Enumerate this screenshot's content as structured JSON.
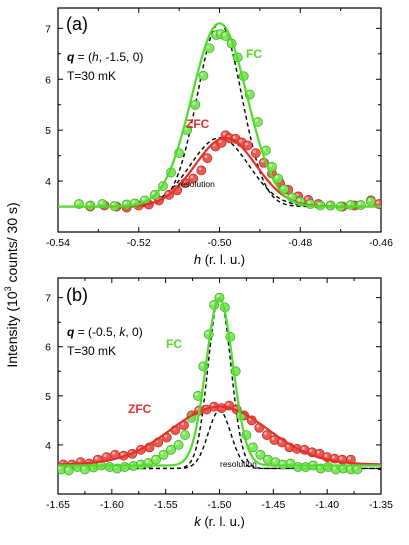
{
  "figure": {
    "ylabel_prefix": "Intensity (10",
    "ylabel_exp": "3",
    "ylabel_suffix": " counts/ 30 s)"
  },
  "colors": {
    "fc": "#4fdc2a",
    "zfc": "#e3312a",
    "zfc_marker": "#ee4a42",
    "fc_marker": "#73e64e",
    "resolution": "#000000"
  },
  "chart_data": [
    {
      "panel_label": "(a)",
      "type": "scatter",
      "q_bold": "q",
      "q_rest": " = (",
      "q_var": "h",
      "q_tail": ", -1.5, 0)",
      "temperature": "T=30 mK",
      "xlabel_var": "h",
      "xlabel_rest": " (r. l. u.)",
      "xlim": [
        -0.54,
        -0.46
      ],
      "ylim": [
        3.0,
        7.4
      ],
      "xticks": [
        -0.54,
        -0.52,
        -0.5,
        -0.48,
        -0.46
      ],
      "xtick_labels": [
        "-0.54",
        "-0.52",
        "-0.50",
        "-0.48",
        "-0.46"
      ],
      "yticks": [
        4,
        5,
        6,
        7
      ],
      "ytick_labels": [
        "4",
        "5",
        "6",
        "7"
      ],
      "labels": {
        "fc": "FC",
        "zfc": "ZFC",
        "resolution": "resolution"
      },
      "fits": {
        "fc": {
          "center": -0.5,
          "amplitude": 3.6,
          "sigma": 0.0068,
          "background": 3.5
        },
        "zfc": {
          "center": -0.4985,
          "amplitude": 1.35,
          "sigma": 0.0075,
          "background": 3.5
        },
        "resolution_fc": {
          "center": -0.5,
          "amplitude": 3.6,
          "sigma": 0.0055,
          "background": 3.5
        },
        "resolution_zfc": {
          "center": -0.5,
          "amplitude": 1.35,
          "sigma": 0.0072,
          "background": 3.5
        }
      },
      "series": [
        {
          "name": "FC",
          "points": [
            [
              -0.5348,
              3.55
            ],
            [
              -0.532,
              3.52
            ],
            [
              -0.529,
              3.55
            ],
            [
              -0.526,
              3.51
            ],
            [
              -0.523,
              3.54
            ],
            [
              -0.521,
              3.56
            ],
            [
              -0.5185,
              3.62
            ],
            [
              -0.516,
              3.73
            ],
            [
              -0.514,
              3.9
            ],
            [
              -0.512,
              4.17
            ],
            [
              -0.51,
              4.55
            ],
            [
              -0.508,
              5.0
            ],
            [
              -0.506,
              5.5
            ],
            [
              -0.504,
              6.07
            ],
            [
              -0.5025,
              6.61
            ],
            [
              -0.5008,
              6.87
            ],
            [
              -0.4997,
              6.89
            ],
            [
              -0.4985,
              6.85
            ],
            [
              -0.497,
              6.7
            ],
            [
              -0.4955,
              6.43
            ],
            [
              -0.494,
              6.06
            ],
            [
              -0.4925,
              5.7
            ],
            [
              -0.4905,
              5.16
            ],
            [
              -0.4885,
              4.6
            ],
            [
              -0.487,
              4.28
            ],
            [
              -0.4855,
              4.05
            ],
            [
              -0.484,
              3.84
            ],
            [
              -0.482,
              3.68
            ],
            [
              -0.48,
              3.6
            ],
            [
              -0.4775,
              3.55
            ],
            [
              -0.475,
              3.52
            ],
            [
              -0.4725,
              3.52
            ],
            [
              -0.47,
              3.5
            ],
            [
              -0.4675,
              3.53
            ],
            [
              -0.465,
              3.53
            ],
            [
              -0.4625,
              3.6
            ]
          ]
        },
        {
          "name": "ZFC",
          "points": [
            [
              -0.532,
              3.5
            ],
            [
              -0.5285,
              3.52
            ],
            [
              -0.5255,
              3.5
            ],
            [
              -0.523,
              3.48
            ],
            [
              -0.52,
              3.52
            ],
            [
              -0.5175,
              3.54
            ],
            [
              -0.515,
              3.62
            ],
            [
              -0.5125,
              3.73
            ],
            [
              -0.5105,
              3.82
            ],
            [
              -0.5085,
              3.96
            ],
            [
              -0.5065,
              4.05
            ],
            [
              -0.5045,
              4.21
            ],
            [
              -0.503,
              4.45
            ],
            [
              -0.501,
              4.68
            ],
            [
              -0.4995,
              4.75
            ],
            [
              -0.4985,
              4.9
            ],
            [
              -0.4975,
              4.84
            ],
            [
              -0.496,
              4.83
            ],
            [
              -0.4945,
              4.76
            ],
            [
              -0.493,
              4.7
            ],
            [
              -0.491,
              4.55
            ],
            [
              -0.489,
              4.36
            ],
            [
              -0.487,
              4.15
            ],
            [
              -0.485,
              3.96
            ],
            [
              -0.483,
              3.83
            ],
            [
              -0.4805,
              3.7
            ],
            [
              -0.478,
              3.63
            ],
            [
              -0.4755,
              3.55
            ],
            [
              -0.4725,
              3.52
            ],
            [
              -0.4695,
              3.5
            ],
            [
              -0.4665,
              3.52
            ],
            [
              -0.4625,
              3.62
            ],
            [
              -0.4605,
              3.55
            ]
          ]
        }
      ]
    },
    {
      "panel_label": "(b)",
      "type": "scatter",
      "q_bold": "q",
      "q_rest": " = (-0.5, ",
      "q_var": "k",
      "q_tail": ", 0)",
      "temperature": "T=30 mK",
      "xlabel_var": "k",
      "xlabel_rest": " (r. l. u.)",
      "xlim": [
        -1.65,
        -1.35
      ],
      "ylim": [
        3.0,
        7.4
      ],
      "xticks": [
        -1.65,
        -1.6,
        -1.55,
        -1.5,
        -1.45,
        -1.4,
        -1.35
      ],
      "xtick_labels": [
        "-1.65",
        "-1.60",
        "-1.55",
        "-1.50",
        "-1.45",
        "-1.40",
        "-1.35"
      ],
      "yticks": [
        4,
        5,
        6,
        7
      ],
      "ytick_labels": [
        "4",
        "5",
        "6",
        "7"
      ],
      "labels": {
        "fc": "FC",
        "zfc": "ZFC",
        "resolution": "resolution"
      },
      "fits": {
        "fc": {
          "center": -1.5,
          "amplitude": 3.4,
          "sigma": 0.0125,
          "background": 3.58
        },
        "zfc": {
          "center": -1.5,
          "amplitude": 1.18,
          "sigma": 0.045,
          "background": 3.6
        },
        "resolution_fc": {
          "center": -1.5,
          "amplitude": 3.5,
          "sigma": 0.0105,
          "background": 3.52
        },
        "resolution_zfc": {
          "center": -1.5,
          "amplitude": 1.18,
          "sigma": 0.0105,
          "background": 3.52
        }
      },
      "series": [
        {
          "name": "FC",
          "points": [
            [
              -1.647,
              3.5
            ],
            [
              -1.64,
              3.48
            ],
            [
              -1.632,
              3.55
            ],
            [
              -1.625,
              3.5
            ],
            [
              -1.617,
              3.54
            ],
            [
              -1.61,
              3.58
            ],
            [
              -1.602,
              3.55
            ],
            [
              -1.595,
              3.52
            ],
            [
              -1.588,
              3.55
            ],
            [
              -1.58,
              3.57
            ],
            [
              -1.573,
              3.6
            ],
            [
              -1.566,
              3.63
            ],
            [
              -1.559,
              3.7
            ],
            [
              -1.552,
              3.8
            ],
            [
              -1.545,
              3.9
            ],
            [
              -1.538,
              4.0
            ],
            [
              -1.532,
              4.2
            ],
            [
              -1.526,
              4.55
            ],
            [
              -1.52,
              5.0
            ],
            [
              -1.515,
              5.6
            ],
            [
              -1.51,
              6.25
            ],
            [
              -1.505,
              6.85
            ],
            [
              -1.5,
              7.0
            ],
            [
              -1.495,
              6.8
            ],
            [
              -1.49,
              6.2
            ],
            [
              -1.485,
              5.5
            ],
            [
              -1.48,
              4.6
            ],
            [
              -1.475,
              4.2
            ],
            [
              -1.469,
              3.95
            ],
            [
              -1.462,
              3.8
            ],
            [
              -1.455,
              3.7
            ],
            [
              -1.448,
              3.65
            ],
            [
              -1.441,
              3.6
            ],
            [
              -1.434,
              3.62
            ],
            [
              -1.427,
              3.55
            ],
            [
              -1.42,
              3.55
            ],
            [
              -1.413,
              3.58
            ],
            [
              -1.406,
              3.52
            ],
            [
              -1.399,
              3.55
            ],
            [
              -1.392,
              3.5
            ],
            [
              -1.385,
              3.52
            ],
            [
              -1.378,
              3.5
            ],
            [
              -1.372,
              3.5
            ]
          ]
        },
        {
          "name": "ZFC",
          "points": [
            [
              -1.645,
              3.6
            ],
            [
              -1.637,
              3.6
            ],
            [
              -1.629,
              3.65
            ],
            [
              -1.621,
              3.62
            ],
            [
              -1.613,
              3.7
            ],
            [
              -1.605,
              3.75
            ],
            [
              -1.597,
              3.8
            ],
            [
              -1.589,
              3.78
            ],
            [
              -1.581,
              3.82
            ],
            [
              -1.573,
              3.9
            ],
            [
              -1.565,
              3.95
            ],
            [
              -1.557,
              4.05
            ],
            [
              -1.549,
              4.15
            ],
            [
              -1.541,
              4.3
            ],
            [
              -1.533,
              4.4
            ],
            [
              -1.526,
              4.6
            ],
            [
              -1.519,
              4.7
            ],
            [
              -1.512,
              4.72
            ],
            [
              -1.505,
              4.78
            ],
            [
              -1.498,
              4.75
            ],
            [
              -1.491,
              4.8
            ],
            [
              -1.484,
              4.72
            ],
            [
              -1.477,
              4.6
            ],
            [
              -1.47,
              4.5
            ],
            [
              -1.463,
              4.35
            ],
            [
              -1.456,
              4.2
            ],
            [
              -1.449,
              4.1
            ],
            [
              -1.442,
              4.05
            ],
            [
              -1.435,
              3.95
            ],
            [
              -1.428,
              3.92
            ],
            [
              -1.421,
              3.9
            ],
            [
              -1.414,
              3.85
            ],
            [
              -1.407,
              3.82
            ],
            [
              -1.4,
              3.75
            ],
            [
              -1.393,
              3.72
            ],
            [
              -1.386,
              3.7
            ],
            [
              -1.378,
              3.7
            ]
          ]
        }
      ]
    }
  ]
}
